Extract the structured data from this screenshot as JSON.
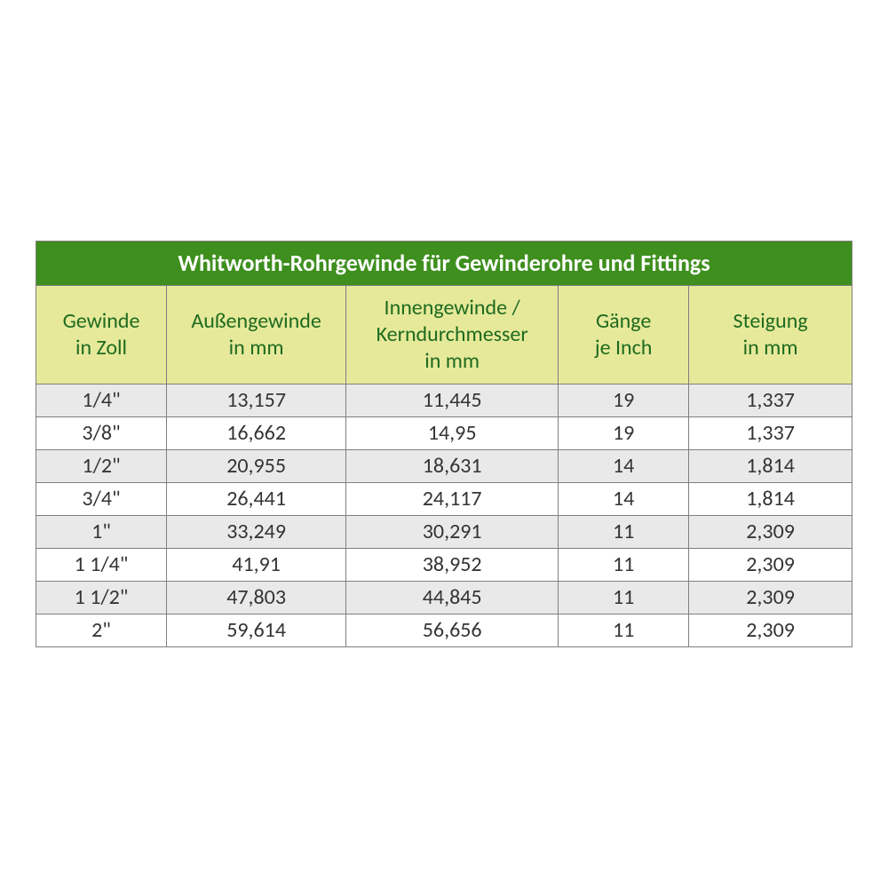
{
  "table": {
    "type": "table",
    "title": "Whitworth-Rohrgewinde für Gewinderohre und Fittings",
    "background_color": "#ffffff",
    "border_color": "#7f7f7f",
    "title_style": {
      "background": "#3e8f1e",
      "color": "#ffffff",
      "fontsize_pt": 20,
      "font_weight": "bold"
    },
    "header_style": {
      "background": "#e6e99a",
      "color": "#1f6b1f",
      "fontsize_pt": 18,
      "font_weight": "normal"
    },
    "body_style": {
      "odd_row_background": "#e9e9e9",
      "even_row_background": "#ffffff",
      "color": "#343434",
      "fontsize_pt": 18
    },
    "column_widths_pct": [
      16,
      22,
      26,
      16,
      20
    ],
    "columns": [
      {
        "line1": "Gewinde",
        "line2": "in Zoll"
      },
      {
        "line1": "Außengewinde",
        "line2": "in mm"
      },
      {
        "line1": "Innengewinde /",
        "line2": "Kerndurchmesser",
        "line3": "in mm"
      },
      {
        "line1": "Gänge",
        "line2": "je Inch"
      },
      {
        "line1": "Steigung",
        "line2": "in mm"
      }
    ],
    "rows": [
      {
        "c0": "1/4\"",
        "c1": "13,157",
        "c2": "11,445",
        "c3": "19",
        "c4": "1,337"
      },
      {
        "c0": "3/8\"",
        "c1": "16,662",
        "c2": "14,95",
        "c3": "19",
        "c4": "1,337"
      },
      {
        "c0": "1/2\"",
        "c1": "20,955",
        "c2": "18,631",
        "c3": "14",
        "c4": "1,814"
      },
      {
        "c0": "3/4\"",
        "c1": "26,441",
        "c2": "24,117",
        "c3": "14",
        "c4": "1,814"
      },
      {
        "c0": "1\"",
        "c1": "33,249",
        "c2": "30,291",
        "c3": "11",
        "c4": "2,309"
      },
      {
        "c0": "1 1/4\"",
        "c1": "41,91",
        "c2": "38,952",
        "c3": "11",
        "c4": "2,309"
      },
      {
        "c0": "1 1/2\"",
        "c1": "47,803",
        "c2": "44,845",
        "c3": "11",
        "c4": "2,309"
      },
      {
        "c0": "2\"",
        "c1": "59,614",
        "c2": "56,656",
        "c3": "11",
        "c4": "2,309"
      }
    ]
  }
}
